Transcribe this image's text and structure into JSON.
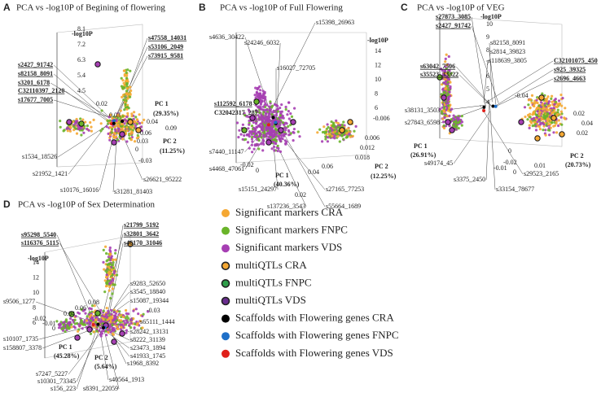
{
  "panels": [
    {
      "letter": "A",
      "title": "PCA vs -log10P of Begining of flowering",
      "z_axis": "-log10P",
      "z_ticks": [
        "8.1",
        "7.2",
        "6.3",
        "5.4",
        "4.5"
      ],
      "pc1": "PC 1",
      "pc1_pct": "(29.35%)",
      "pc2": "PC 2",
      "pc2_pct": "(11.25%)",
      "axis_ticks": [
        "0.04",
        "0.09",
        "0.06",
        "0.03",
        "0",
        "-0.03",
        "0.03",
        "0.02"
      ],
      "markers": [
        {
          "text": "s47558_14031",
          "underline": true
        },
        {
          "text": "s53106_2049",
          "underline": true
        },
        {
          "text": "s73915_9581",
          "underline": true
        },
        {
          "text": "s2427_91742",
          "underline": true
        },
        {
          "text": "s82158_8091",
          "underline": true
        },
        {
          "text": "s3201_6178",
          "underline": true
        },
        {
          "text": "C32110397_2120",
          "underline": true
        },
        {
          "text": "s17677_7005",
          "underline": true
        },
        {
          "text": "s1534_18526"
        },
        {
          "text": "s21952_1421"
        },
        {
          "text": "s10176_16016"
        },
        {
          "text": "s26621_95222"
        },
        {
          "text": "s31281_81403"
        }
      ]
    },
    {
      "letter": "B",
      "title": "PCA vs -log10P of Full Flowering",
      "z_axis": "-log10P",
      "z_ticks": [
        "14",
        "12",
        "10",
        "8",
        "6"
      ],
      "pc1": "PC 1",
      "pc1_pct": "(40.36%)",
      "pc2": "PC 2",
      "pc2_pct": "(12.25%)",
      "axis_ticks": [
        "-0.006",
        "0.006",
        "0.012",
        "0.018",
        "0.06",
        "0.04",
        "-0.02",
        "0",
        "0.02"
      ],
      "markers": [
        {
          "text": "s15398_26963"
        },
        {
          "text": "s4636_30422"
        },
        {
          "text": "s24246_6032"
        },
        {
          "text": "s16027_72705"
        },
        {
          "text": "s112592_6178",
          "underline": true
        },
        {
          "text": "C32042317_287",
          "bold": true
        },
        {
          "text": "s7440_11147"
        },
        {
          "text": "s4468_47061"
        },
        {
          "text": "s15151_24297"
        },
        {
          "text": "s137236_3543"
        },
        {
          "text": "s55664_1689"
        },
        {
          "text": "s27165_77253"
        }
      ]
    },
    {
      "letter": "C",
      "title": "PCA vs -log10P of VEG",
      "z_axis": "-log10P",
      "z_ticks": [
        "10",
        "9",
        "8",
        "7",
        "6",
        "5",
        "4"
      ],
      "pc1": "PC 1",
      "pc1_pct": "(26.91%)",
      "pc2": "PC 2",
      "pc2_pct": "(20.73%)",
      "axis_ticks": [
        "-0.04",
        "0.02",
        "0.04",
        "0.02",
        "0",
        "-0.02",
        "-0.01",
        "0",
        "0.01"
      ],
      "markers": [
        {
          "text": "s27873_3085",
          "underline": true
        },
        {
          "text": "s2427_91742",
          "underline": true
        },
        {
          "text": "s82158_8091"
        },
        {
          "text": "s2814_39823"
        },
        {
          "text": "s118639_3805"
        },
        {
          "text": "s63042_7506",
          "underline": true
        },
        {
          "text": "s35523_33322",
          "underline": true
        },
        {
          "text": "C32101075_450",
          "underline": true
        },
        {
          "text": "s925_39325",
          "underline": true
        },
        {
          "text": "s2696_4663",
          "underline": true
        },
        {
          "text": "s38131_3503"
        },
        {
          "text": "s27843_6598"
        },
        {
          "text": "s49174_45"
        },
        {
          "text": "s3375_2450"
        },
        {
          "text": "s33154_78677"
        },
        {
          "text": "s29523_2165"
        }
      ]
    },
    {
      "letter": "D",
      "title": "PCA vs -log10P of Sex Determination",
      "z_axis": "-log10P",
      "z_ticks": [
        "14",
        "12",
        "10",
        "8",
        "6"
      ],
      "pc1": "PC 1",
      "pc1_pct": "(45.28%)",
      "pc2": "PC 2",
      "pc2_pct": "(5.64%)",
      "axis_ticks": [
        "0.08",
        "0.06",
        "0.04",
        "-0.02",
        "-0.01",
        "0",
        "-0.03"
      ],
      "markers": [
        {
          "text": "s21799_5192",
          "underline": true
        },
        {
          "text": "s32801_3642",
          "underline": true
        },
        {
          "text": "s46170_31046",
          "underline": true
        },
        {
          "text": "s95298_5540",
          "underline": true
        },
        {
          "text": "s116376_5115",
          "underline": true
        },
        {
          "text": "s9506_1277"
        },
        {
          "text": "s9283_52650"
        },
        {
          "text": "s3545_18840"
        },
        {
          "text": "s15087_19344"
        },
        {
          "text": "s65111_1444"
        },
        {
          "text": "s28242_13131"
        },
        {
          "text": "s8222_31139"
        },
        {
          "text": "s23473_1894"
        },
        {
          "text": "s41933_1745"
        },
        {
          "text": "s1968_8392"
        },
        {
          "text": "s10107_1735"
        },
        {
          "text": "s158807_3378"
        },
        {
          "text": "s7247_5227"
        },
        {
          "text": "s10301_73345"
        },
        {
          "text": "s156_223"
        },
        {
          "text": "s8391_22059"
        },
        {
          "text": "s40564_1913"
        }
      ]
    }
  ],
  "legend": [
    {
      "label": "Significant markers CRA",
      "color": "#f5a833"
    },
    {
      "label": "Significant markers FNPC",
      "color": "#6ab42a"
    },
    {
      "label": "Significant markers VDS",
      "color": "#a63fb3"
    },
    {
      "label": "multiQTLs CRA",
      "color": "#f5a833",
      "ring": "#222222"
    },
    {
      "label": "multiQTLs FNPC",
      "color": "#2f9e4a",
      "ring": "#222222"
    },
    {
      "label": "multiQTLs VDS",
      "color": "#6a2d8f",
      "ring": "#222222"
    },
    {
      "label": "Scaffolds with Flowering genes CRA",
      "color": "#000000"
    },
    {
      "label": "Scaffolds with Flowering genes FNPC",
      "color": "#1e6fc8"
    },
    {
      "label": "Scaffolds with Flowering genes VDS",
      "color": "#e0201a"
    }
  ]
}
